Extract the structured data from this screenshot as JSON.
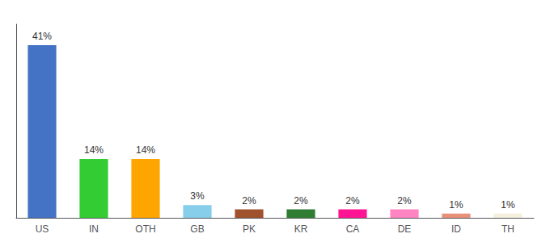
{
  "chart_data": {
    "type": "bar",
    "categories": [
      "US",
      "IN",
      "OTH",
      "GB",
      "PK",
      "KR",
      "CA",
      "DE",
      "ID",
      "TH"
    ],
    "values": [
      41,
      14,
      14,
      3,
      2,
      2,
      2,
      2,
      1,
      1
    ],
    "value_labels": [
      "41%",
      "14%",
      "14%",
      "3%",
      "2%",
      "2%",
      "2%",
      "2%",
      "1%",
      "1%"
    ],
    "colors": [
      "#4472C4",
      "#33CC33",
      "#FFA500",
      "#87CEEB",
      "#A0522D",
      "#2E7D32",
      "#FF1493",
      "#FF85C2",
      "#E8907A",
      "#F5F0DC"
    ],
    "ylim": [
      0,
      46
    ],
    "data_labels": true,
    "tick_labels": "x",
    "grid": false
  }
}
